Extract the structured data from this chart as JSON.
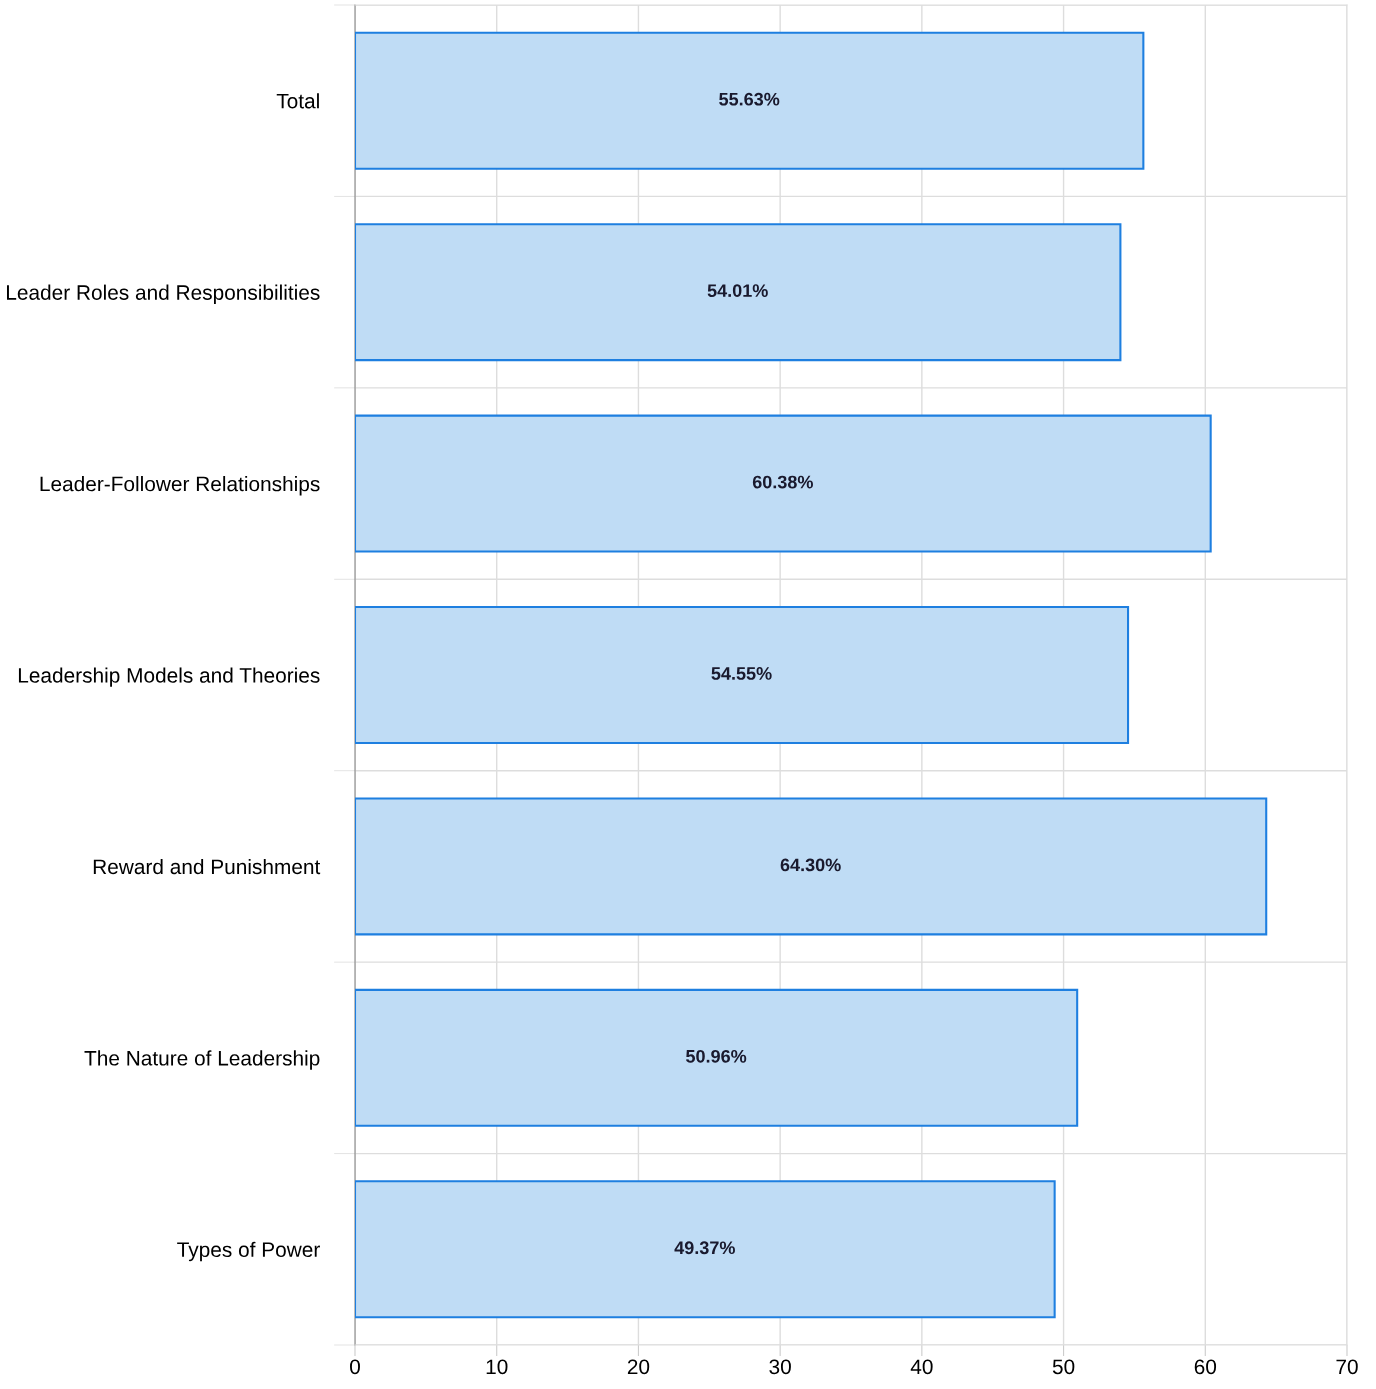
{
  "chart_data": {
    "type": "bar",
    "orientation": "horizontal",
    "categories": [
      "Total",
      "Leader Roles and Responsibilities",
      "Leader-Follower Relationships",
      "Leadership Models and Theories",
      "Reward and Punishment",
      "The Nature of Leadership",
      "Types of Power"
    ],
    "values": [
      55.63,
      54.01,
      60.38,
      54.55,
      64.3,
      50.96,
      49.37
    ],
    "value_labels": [
      "55.63%",
      "54.01%",
      "60.38%",
      "54.55%",
      "64.30%",
      "50.96%",
      "49.37%"
    ],
    "color": "#bfdcf5",
    "xlim": [
      0,
      70
    ],
    "xticks": [
      0,
      10,
      20,
      30,
      40,
      50,
      60,
      70
    ],
    "grid": true
  }
}
